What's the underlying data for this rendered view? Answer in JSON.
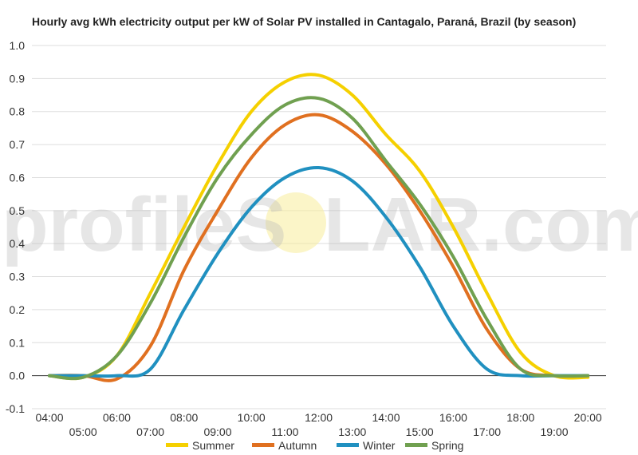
{
  "chart_data": {
    "type": "line",
    "title": "Hourly avg kWh electricity output per kW of Solar PV installed in Cantagalo, Paraná, Brazil (by season)",
    "xlabel": "",
    "ylabel": "",
    "x": [
      "04:00",
      "05:00",
      "06:00",
      "07:00",
      "08:00",
      "09:00",
      "10:00",
      "11:00",
      "12:00",
      "13:00",
      "14:00",
      "15:00",
      "16:00",
      "17:00",
      "18:00",
      "19:00",
      "20:00"
    ],
    "ylim": [
      -0.1,
      1.0
    ],
    "yticks": [
      "-0.1",
      "0.0",
      "0.1",
      "0.2",
      "0.3",
      "0.4",
      "0.5",
      "0.6",
      "0.7",
      "0.8",
      "0.9",
      "1.0"
    ],
    "grid": true,
    "legend_position": "bottom",
    "series": [
      {
        "name": "Summer",
        "color": "#f5d000",
        "values": [
          0.0,
          -0.005,
          0.06,
          0.25,
          0.45,
          0.64,
          0.8,
          0.89,
          0.91,
          0.85,
          0.73,
          0.62,
          0.45,
          0.25,
          0.07,
          0.0,
          -0.005
        ]
      },
      {
        "name": "Autumn",
        "color": "#e07020",
        "values": [
          0.0,
          0.0,
          -0.01,
          0.09,
          0.32,
          0.5,
          0.66,
          0.76,
          0.79,
          0.74,
          0.64,
          0.5,
          0.33,
          0.14,
          0.02,
          0.0,
          0.0
        ]
      },
      {
        "name": "Winter",
        "color": "#2090c0",
        "values": [
          0.0,
          0.0,
          0.0,
          0.02,
          0.2,
          0.37,
          0.51,
          0.6,
          0.63,
          0.59,
          0.48,
          0.33,
          0.15,
          0.02,
          0.0,
          0.0,
          0.0
        ]
      },
      {
        "name": "Spring",
        "color": "#70a050",
        "values": [
          0.0,
          -0.005,
          0.06,
          0.22,
          0.42,
          0.6,
          0.73,
          0.82,
          0.84,
          0.78,
          0.65,
          0.52,
          0.36,
          0.17,
          0.02,
          0.0,
          0.0
        ]
      }
    ]
  },
  "watermark": {
    "text_left": "profileS",
    "text_right": "LAR.com"
  }
}
